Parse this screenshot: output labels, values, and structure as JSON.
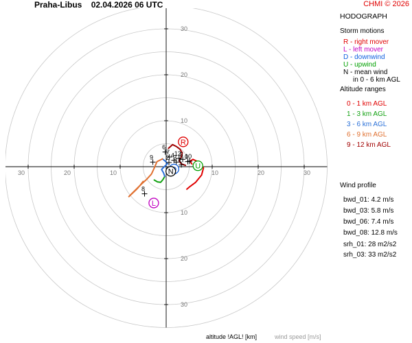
{
  "header": {
    "station": "Praha-Libus",
    "datetime": "02.04.2026 06 UTC",
    "credit": "CHMI © 2026"
  },
  "legend": {
    "title": "HODOGRAPH",
    "storm_motions_title": "Storm motions",
    "storm_motions": [
      {
        "text": "R - right mover",
        "color": "#e00000"
      },
      {
        "text": "L - left mover",
        "color": "#c000c0"
      },
      {
        "text": "D - downwind",
        "color": "#1060e0"
      },
      {
        "text": "U - upwind",
        "color": "#00a000"
      },
      {
        "text": "N - mean wind",
        "color": "#000000"
      },
      {
        "text": "in 0 - 6 km AGL",
        "color": "#000000"
      }
    ],
    "altitude_title": "Altitude ranges",
    "altitude_ranges": [
      {
        "text": "0 - 1 km AGL",
        "color": "#e00000"
      },
      {
        "text": "1 - 3 km AGL",
        "color": "#10a010"
      },
      {
        "text": "3 - 6 km AGL",
        "color": "#2a70d8"
      },
      {
        "text": "6 - 9 km AGL",
        "color": "#e07030"
      },
      {
        "text": "9 - 12 km AGL",
        "color": "#a00000"
      }
    ]
  },
  "wind_profile": {
    "title": "Wind profile",
    "items": [
      "bwd_01: 4.2 m/s",
      "bwd_03: 5.8 m/s",
      "bwd_06: 7.4 m/s",
      "bwd_08: 12.8 m/s"
    ],
    "srh": [
      "srh_01: 28 m2/s2",
      "srh_03: 33 m2/s2"
    ]
  },
  "footer": {
    "altitude_label": "altitude !AGL! [km]",
    "windspeed_label": "wind speed [m/s]"
  },
  "chart_data": {
    "type": "scatter",
    "title": "HODOGRAPH",
    "rings": [
      5,
      10,
      15,
      20,
      25,
      30,
      35
    ],
    "xlim": [
      -35,
      35
    ],
    "ylim": [
      -35,
      35
    ],
    "tick_labels": [
      10,
      20,
      30
    ],
    "grid": true,
    "series": [
      {
        "name": "0 - 1 km AGL",
        "color": "#e00000",
        "u": [
          4.5,
          5.2,
          6.4,
          7.7,
          8.1,
          7.6,
          6.7,
          5.8,
          5.2,
          5.6
        ],
        "v": [
          -4.9,
          -4.3,
          -3.4,
          -1.8,
          -0.3,
          0.6,
          1.2,
          1.6,
          1.2,
          0.6
        ]
      },
      {
        "name": "1 - 3 km AGL",
        "color": "#10a010",
        "u": [
          -2.6,
          -1.9,
          -1.2,
          -0.7,
          -0.3
        ],
        "v": [
          -2.9,
          -3.3,
          -3.4,
          -2.8,
          -2.1
        ]
      },
      {
        "name": "3 - 6 km AGL",
        "color": "#2a70d8",
        "u": [
          -0.3,
          -0.6,
          -1.0,
          -0.4,
          0.3,
          -0.2,
          -0.8
        ],
        "v": [
          -2.1,
          -1.3,
          -0.6,
          0.0,
          0.7,
          1.2,
          1.7
        ]
      },
      {
        "name": "6 - 9 km AGL",
        "color": "#e07030",
        "u": [
          -0.8,
          -2.0,
          -2.6,
          -3.2,
          -4.2,
          -5.4,
          -6.6,
          -7.8,
          -8.1,
          -6.4,
          -5.7,
          -5.0
        ],
        "v": [
          1.7,
          1.1,
          -0.3,
          -1.6,
          -2.7,
          -3.8,
          -5.0,
          -6.2,
          -6.5,
          -4.9,
          -4.1,
          -3.2
        ]
      },
      {
        "name": "9 - 12 km AGL",
        "color": "#a00000",
        "u": [
          0.5,
          1.4,
          2.2,
          3.0,
          3.5,
          3.3,
          2.8,
          3.3,
          4.2
        ],
        "v": [
          4.0,
          4.8,
          4.4,
          3.8,
          3.0,
          2.1,
          1.3,
          0.6,
          0.3
        ]
      }
    ],
    "altitude_markers": [
      {
        "label": "0",
        "u": 4.7,
        "v": 1.1
      },
      {
        "label": "1",
        "u": 3.3,
        "v": 0.4
      },
      {
        "label": "2",
        "u": 0.6,
        "v": 0.9
      },
      {
        "label": "3",
        "u": 2.2,
        "v": 1.0
      },
      {
        "label": "4",
        "u": 1.7,
        "v": 1.4
      },
      {
        "label": "5",
        "u": 3.6,
        "v": 1.6
      },
      {
        "label": "6",
        "u": -0.2,
        "v": 3.2
      },
      {
        "label": "7",
        "u": 0.7,
        "v": 2.1
      },
      {
        "label": "8",
        "u": -4.7,
        "v": -5.9
      },
      {
        "label": "9",
        "u": -2.9,
        "v": 1.0
      },
      {
        "label": "10",
        "u": 5.1,
        "v": 1.2
      },
      {
        "label": "12",
        "u": 2.8,
        "v": 1.8
      }
    ],
    "storm_motions": [
      {
        "label": "R",
        "color": "#e00000",
        "u": 3.7,
        "v": 5.4
      },
      {
        "label": "L",
        "color": "#c000c0",
        "u": -2.7,
        "v": -7.9
      },
      {
        "label": "D",
        "color": "#1060e0",
        "u": 1.7,
        "v": -0.5
      },
      {
        "label": "U",
        "color": "#00a000",
        "u": 6.9,
        "v": 0.2
      },
      {
        "label": "N",
        "color": "#000000",
        "u": 1.0,
        "v": -1.0
      }
    ]
  }
}
